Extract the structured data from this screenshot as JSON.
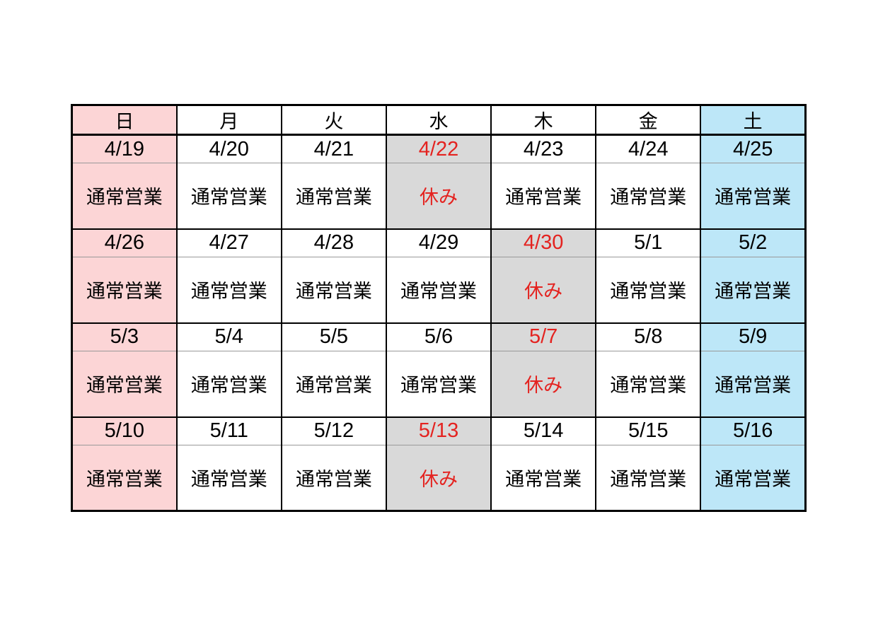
{
  "calendar": {
    "day_headers": [
      {
        "label": "日",
        "type": "sunday"
      },
      {
        "label": "月",
        "type": "weekday"
      },
      {
        "label": "火",
        "type": "weekday"
      },
      {
        "label": "水",
        "type": "weekday"
      },
      {
        "label": "木",
        "type": "weekday"
      },
      {
        "label": "金",
        "type": "weekday"
      },
      {
        "label": "土",
        "type": "saturday"
      }
    ],
    "weeks": [
      {
        "days": [
          {
            "date": "4/19",
            "status": "通常営業",
            "closed": false
          },
          {
            "date": "4/20",
            "status": "通常営業",
            "closed": false
          },
          {
            "date": "4/21",
            "status": "通常営業",
            "closed": false
          },
          {
            "date": "4/22",
            "status": "休み",
            "closed": true
          },
          {
            "date": "4/23",
            "status": "通常営業",
            "closed": false
          },
          {
            "date": "4/24",
            "status": "通常営業",
            "closed": false
          },
          {
            "date": "4/25",
            "status": "通常営業",
            "closed": false
          }
        ]
      },
      {
        "days": [
          {
            "date": "4/26",
            "status": "通常営業",
            "closed": false
          },
          {
            "date": "4/27",
            "status": "通常営業",
            "closed": false
          },
          {
            "date": "4/28",
            "status": "通常営業",
            "closed": false
          },
          {
            "date": "4/29",
            "status": "通常営業",
            "closed": false
          },
          {
            "date": "4/30",
            "status": "休み",
            "closed": true
          },
          {
            "date": "5/1",
            "status": "通常営業",
            "closed": false
          },
          {
            "date": "5/2",
            "status": "通常営業",
            "closed": false
          }
        ]
      },
      {
        "days": [
          {
            "date": "5/3",
            "status": "通常営業",
            "closed": false
          },
          {
            "date": "5/4",
            "status": "通常営業",
            "closed": false
          },
          {
            "date": "5/5",
            "status": "通常営業",
            "closed": false
          },
          {
            "date": "5/6",
            "status": "通常営業",
            "closed": false
          },
          {
            "date": "5/7",
            "status": "休み",
            "closed": true
          },
          {
            "date": "5/8",
            "status": "通常営業",
            "closed": false
          },
          {
            "date": "5/9",
            "status": "通常営業",
            "closed": false
          }
        ]
      },
      {
        "days": [
          {
            "date": "5/10",
            "status": "通常営業",
            "closed": false
          },
          {
            "date": "5/11",
            "status": "通常営業",
            "closed": false
          },
          {
            "date": "5/12",
            "status": "通常営業",
            "closed": false
          },
          {
            "date": "5/13",
            "status": "休み",
            "closed": true
          },
          {
            "date": "5/14",
            "status": "通常営業",
            "closed": false
          },
          {
            "date": "5/15",
            "status": "通常営業",
            "closed": false
          },
          {
            "date": "5/16",
            "status": "通常営業",
            "closed": false
          }
        ]
      }
    ],
    "colors": {
      "sunday_bg": "#fcd5d6",
      "saturday_bg": "#bde7f8",
      "closed_bg": "#d9d9d9",
      "closed_text": "#e42320",
      "text": "#000000",
      "border": "#000000",
      "inner_divider": "#999999"
    }
  }
}
